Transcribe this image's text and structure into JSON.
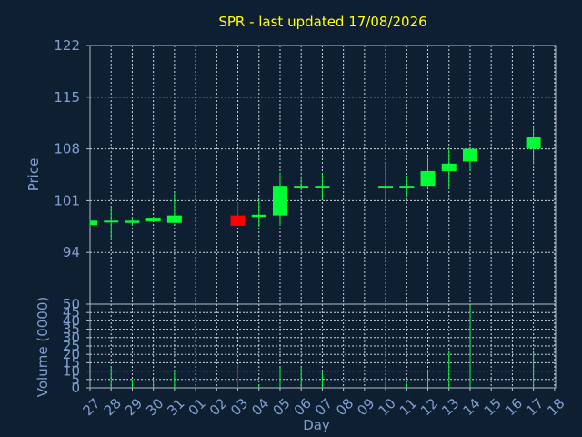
{
  "chart_data": {
    "type": "candlestick",
    "title": "SPR - last updated 17/08/2026",
    "price_label": "Price",
    "volume_label": "Volume (0000)",
    "xlabel": "Day",
    "grid": true,
    "price_ylim": [
      87,
      122
    ],
    "price_ticks": [
      94,
      101,
      108,
      115,
      122
    ],
    "volume_ylim": [
      0,
      50
    ],
    "volume_ticks": [
      0,
      5,
      10,
      15,
      20,
      25,
      30,
      35,
      40,
      45,
      50
    ],
    "days": [
      "27",
      "28",
      "29",
      "30",
      "31",
      "01",
      "02",
      "03",
      "04",
      "05",
      "06",
      "07",
      "08",
      "09",
      "10",
      "11",
      "12",
      "13",
      "14",
      "15",
      "16",
      "17",
      "18"
    ],
    "up_color": "#00ff33",
    "down_color": "#ff0000",
    "candles": [
      {
        "day": "27",
        "open": 97.7,
        "high": 98.4,
        "low": 97.4,
        "close": 98.3,
        "volume": 1
      },
      {
        "day": "28",
        "open": 98.2,
        "high": 100.0,
        "low": 95.8,
        "close": 98.3,
        "volume": 13
      },
      {
        "day": "29",
        "open": 98.0,
        "high": 98.8,
        "low": 97.6,
        "close": 98.3,
        "volume": 5
      },
      {
        "day": "30",
        "open": 98.2,
        "high": 98.8,
        "low": 98.1,
        "close": 98.7,
        "volume": 5
      },
      {
        "day": "31",
        "open": 98.0,
        "high": 102.0,
        "low": 98.0,
        "close": 99.0,
        "volume": 10
      },
      {
        "day": "03",
        "open": 99.0,
        "high": 100.8,
        "low": 97.6,
        "close": 97.6,
        "volume": 14
      },
      {
        "day": "04",
        "open": 98.8,
        "high": 101.0,
        "low": 97.5,
        "close": 99.1,
        "volume": 2
      },
      {
        "day": "05",
        "open": 99.0,
        "high": 104.8,
        "low": 97.6,
        "close": 103.0,
        "volume": 12
      },
      {
        "day": "06",
        "open": 102.8,
        "high": 104.3,
        "low": 102.4,
        "close": 103.0,
        "volume": 12
      },
      {
        "day": "07",
        "open": 102.9,
        "high": 104.6,
        "low": 101.2,
        "close": 103.0,
        "volume": 10
      },
      {
        "day": "10",
        "open": 102.9,
        "high": 106.0,
        "low": 101.2,
        "close": 103.0,
        "volume": 4
      },
      {
        "day": "11",
        "open": 102.8,
        "high": 104.4,
        "low": 101.6,
        "close": 103.0,
        "volume": 3
      },
      {
        "day": "12",
        "open": 103.0,
        "high": 106.9,
        "low": 102.7,
        "close": 105.0,
        "volume": 11
      },
      {
        "day": "13",
        "open": 105.0,
        "high": 108.0,
        "low": 102.6,
        "close": 106.0,
        "volume": 22
      },
      {
        "day": "14",
        "open": 106.3,
        "high": 108.1,
        "low": 105.0,
        "close": 108.0,
        "volume": 49
      },
      {
        "day": "17",
        "open": 108.0,
        "high": 111.0,
        "low": 105.9,
        "close": 109.6,
        "volume": 21
      }
    ]
  }
}
